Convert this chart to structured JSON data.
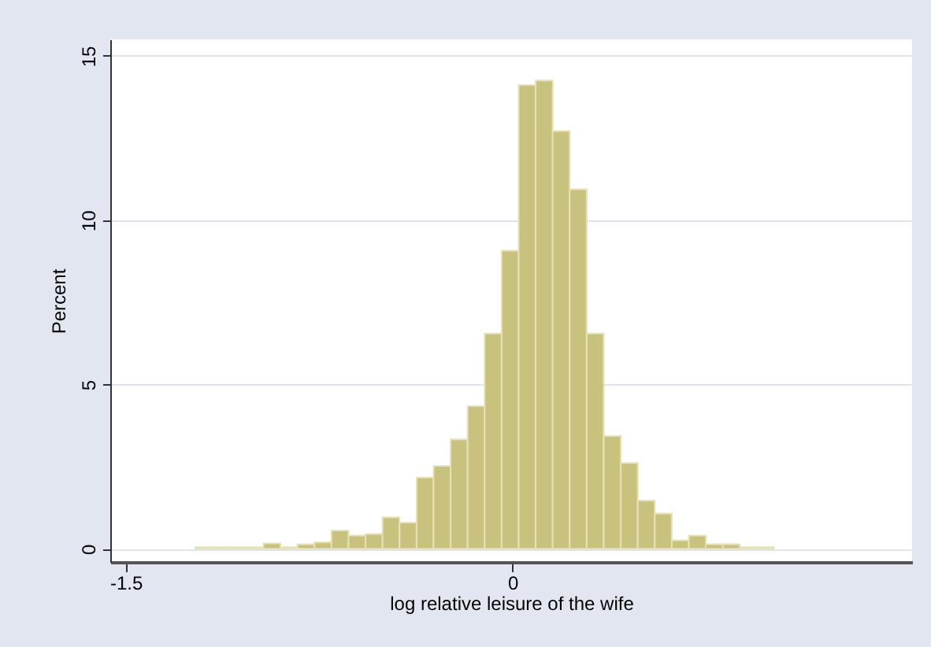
{
  "chart_data": {
    "type": "histogram",
    "xlabel": "log relative leisure of the wife",
    "ylabel": "Percent",
    "bins": [
      -1.23,
      -1.164,
      -1.098,
      -1.032,
      -0.966,
      -0.9,
      -0.834,
      -0.768,
      -0.702,
      -0.636,
      -0.57,
      -0.504,
      -0.438,
      -0.372,
      -0.306,
      -0.24,
      -0.174,
      -0.108,
      -0.042,
      0.024,
      0.09,
      0.156,
      0.222,
      0.288,
      0.354,
      0.42,
      0.486,
      0.552,
      0.618,
      0.684,
      0.75,
      0.816,
      0.882,
      0.948,
      1.014
    ],
    "values": [
      0.05,
      0.05,
      0.05,
      0.05,
      0.16,
      0.05,
      0.14,
      0.2,
      0.56,
      0.4,
      0.45,
      0.96,
      0.8,
      2.17,
      2.52,
      3.33,
      4.34,
      6.55,
      9.07,
      14.11,
      14.25,
      12.71,
      10.94,
      6.55,
      3.43,
      2.61,
      1.47,
      1.07,
      0.26,
      0.4,
      0.14,
      0.14,
      0.05,
      0.05
    ],
    "color": "#c9c27f",
    "xlim": [
      -1.56,
      1.55
    ],
    "xticks": [
      -1.5,
      0
    ],
    "ylim": [
      -0.4,
      15.5
    ],
    "yticks": [
      0,
      5,
      10,
      15
    ],
    "grid": "y"
  }
}
